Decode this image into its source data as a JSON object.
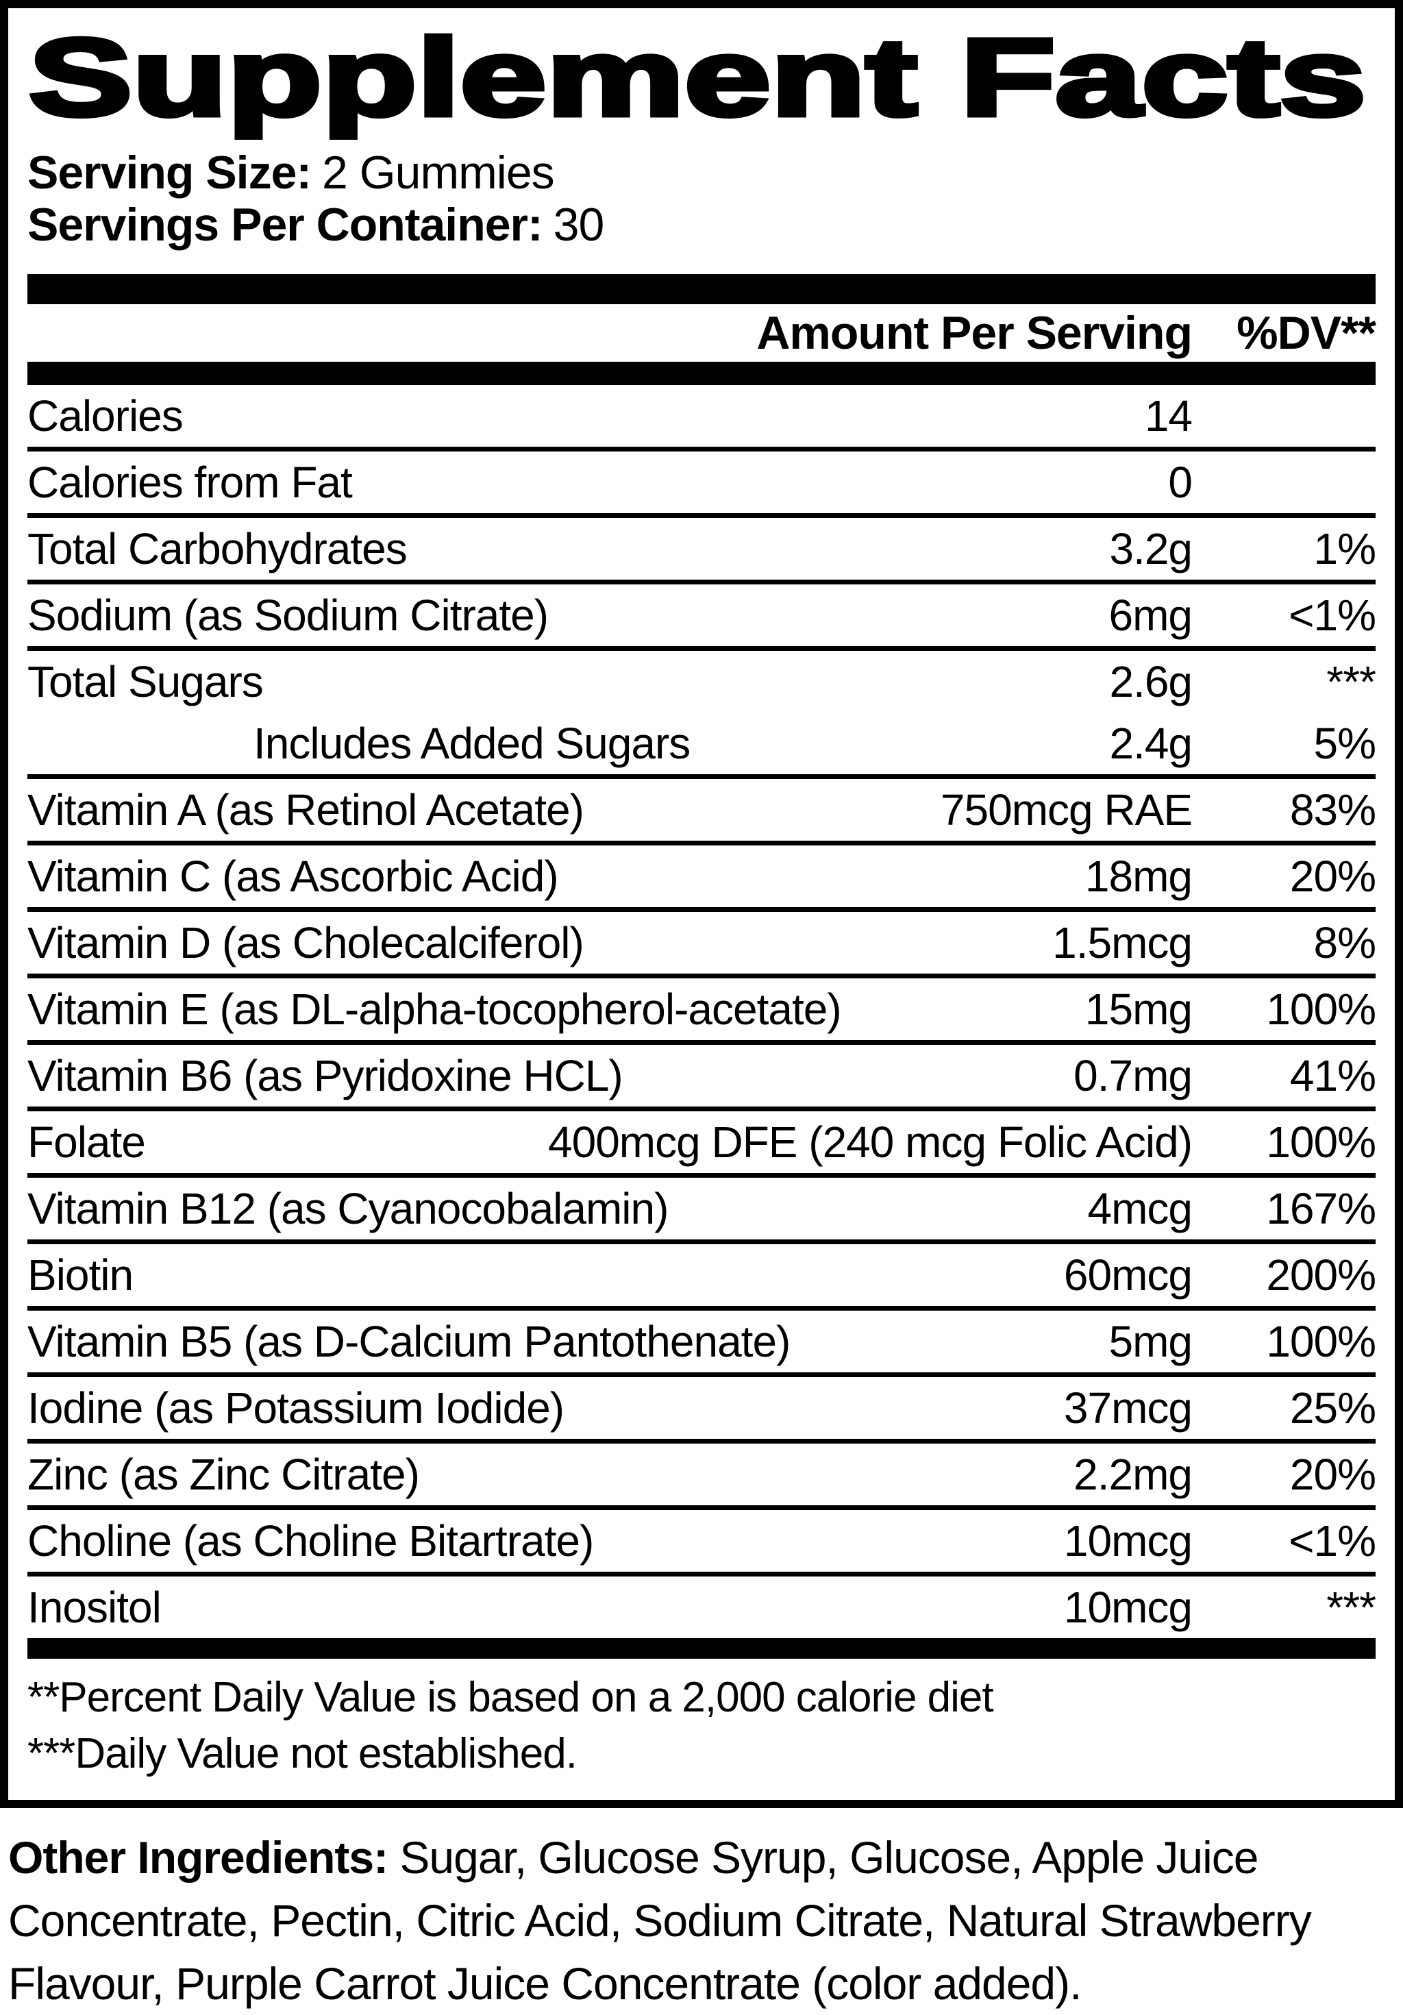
{
  "title": "Supplement Facts",
  "serving": {
    "size_label": "Serving Size:",
    "size_value": "2 Gummies",
    "per_container_label": "Servings Per Container:",
    "per_container_value": "30"
  },
  "header": {
    "amount": "Amount Per Serving",
    "dv": "%DV**"
  },
  "rows": [
    {
      "name": "Calories",
      "amount": "14",
      "dv": ""
    },
    {
      "name": "Calories from Fat",
      "amount": "0",
      "dv": ""
    },
    {
      "name": "Total Carbohydrates",
      "amount": "3.2g",
      "dv": "1%"
    },
    {
      "name": "Sodium (as Sodium Citrate)",
      "amount": "6mg",
      "dv": "<1%"
    },
    {
      "name": "Total Sugars",
      "amount": "2.6g",
      "dv": "***"
    },
    {
      "name": "Includes Added Sugars",
      "amount": "2.4g",
      "dv": "5%"
    },
    {
      "name": "Vitamin A (as Retinol Acetate)",
      "amount": "750mcg RAE",
      "dv": "83%"
    },
    {
      "name": "Vitamin C (as Ascorbic Acid)",
      "amount": "18mg",
      "dv": "20%"
    },
    {
      "name": "Vitamin D (as Cholecalciferol)",
      "amount": "1.5mcg",
      "dv": "8%"
    },
    {
      "name": "Vitamin E (as DL-alpha-tocopherol-acetate)",
      "amount": "15mg",
      "dv": "100%"
    },
    {
      "name": "Vitamin B6 (as Pyridoxine HCL)",
      "amount": "0.7mg",
      "dv": "41%"
    },
    {
      "name": "Folate",
      "amount": "400mcg DFE (240 mcg Folic Acid)",
      "dv": "100%"
    },
    {
      "name": "Vitamin B12 (as Cyanocobalamin)",
      "amount": "4mcg",
      "dv": "167%"
    },
    {
      "name": "Biotin",
      "amount": "60mcg",
      "dv": "200%"
    },
    {
      "name": "Vitamin B5 (as D-Calcium Pantothenate)",
      "amount": "5mg",
      "dv": "100%"
    },
    {
      "name": "Iodine (as Potassium Iodide)",
      "amount": "37mcg",
      "dv": "25%"
    },
    {
      "name": "Zinc (as Zinc Citrate)",
      "amount": "2.2mg",
      "dv": "20%"
    },
    {
      "name": "Choline (as Choline Bitartrate)",
      "amount": "10mcg",
      "dv": "<1%"
    },
    {
      "name": "Inositol",
      "amount": "10mcg",
      "dv": "***"
    }
  ],
  "footnotes": {
    "line1": "**Percent Daily Value is based on a 2,000 calorie diet",
    "line2": "***Daily Value not established."
  },
  "other_ingredients": {
    "label": "Other Ingredients:",
    "text": "Sugar, Glucose Syrup, Glucose, Apple Juice Concentrate, Pectin, Citric Acid, Sodium Citrate, Natural Strawberry Flavour, Purple Carrot Juice Concentrate (color added)."
  },
  "colors": {
    "ink": "#000000",
    "background": "#ffffff"
  }
}
